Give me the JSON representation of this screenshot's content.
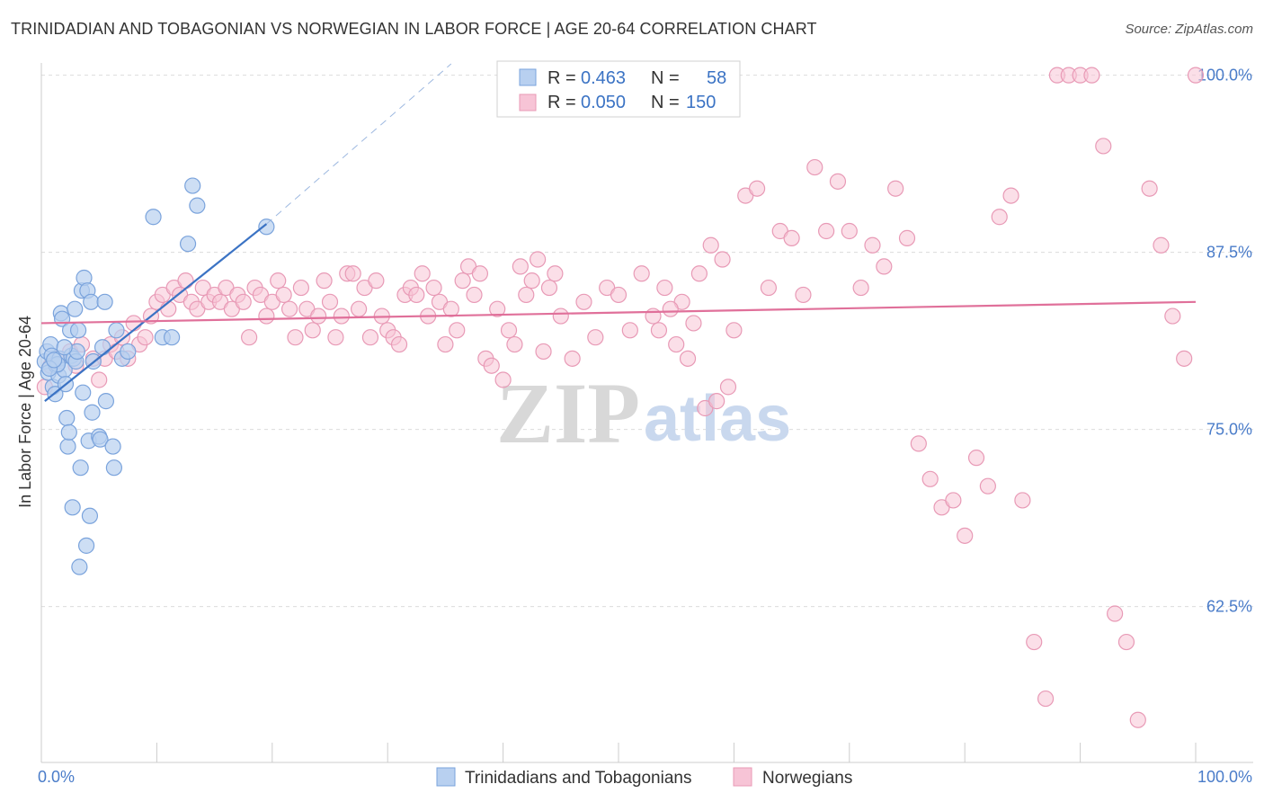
{
  "title": "TRINIDADIAN AND TOBAGONIAN VS NORWEGIAN IN LABOR FORCE | AGE 20-64 CORRELATION CHART",
  "source": "Source: ZipAtlas.com",
  "watermark": {
    "zip": "ZIP",
    "atlas": "atlas"
  },
  "legend": {
    "r_label": "R =",
    "n_label": "N =",
    "blue": {
      "r": "0.463",
      "n": "58"
    },
    "pink": {
      "r": "0.050",
      "n": "150"
    }
  },
  "colors": {
    "blue": "#3b73c4",
    "blue_fill": "#b8d0f0",
    "pink": "#e0709a",
    "pink_fill": "#f7c4d6"
  },
  "chart_data": {
    "type": "scatter",
    "xlabel": "",
    "ylabel": "In Labor Force | Age 20-64",
    "xlim": [
      0,
      100
    ],
    "ylim": [
      51.5,
      101.5
    ],
    "x_tick_labels": [
      "0.0%",
      "100.0%"
    ],
    "y_ticks": [
      {
        "value": 100.0,
        "label": "100.0%"
      },
      {
        "value": 87.5,
        "label": "87.5%"
      },
      {
        "value": 75.0,
        "label": "75.0%"
      },
      {
        "value": 62.5,
        "label": "62.5%"
      }
    ],
    "series": [
      {
        "name": "Trinidadians and Tobagonians",
        "trend": {
          "x0": 0.3,
          "y0": 77.0,
          "x1": 19.5,
          "y1": 89.5,
          "dash_x1": 35.5,
          "dash_y1": 100.8
        },
        "points": [
          [
            0.3,
            79.8
          ],
          [
            0.5,
            80.5
          ],
          [
            0.6,
            79.0
          ],
          [
            0.8,
            81.0
          ],
          [
            0.9,
            80.2
          ],
          [
            1.0,
            78.0
          ],
          [
            1.2,
            77.5
          ],
          [
            1.3,
            79.5
          ],
          [
            1.5,
            78.8
          ],
          [
            1.6,
            80.0
          ],
          [
            1.7,
            83.2
          ],
          [
            1.8,
            82.8
          ],
          [
            2.0,
            79.2
          ],
          [
            2.1,
            78.2
          ],
          [
            2.2,
            75.8
          ],
          [
            2.3,
            73.8
          ],
          [
            2.4,
            74.8
          ],
          [
            2.5,
            82.0
          ],
          [
            2.6,
            80.2
          ],
          [
            2.7,
            69.5
          ],
          [
            2.8,
            80.0
          ],
          [
            2.9,
            83.5
          ],
          [
            3.0,
            79.8
          ],
          [
            3.1,
            80.5
          ],
          [
            3.2,
            82.0
          ],
          [
            3.3,
            65.3
          ],
          [
            3.4,
            72.3
          ],
          [
            3.5,
            84.8
          ],
          [
            3.6,
            77.6
          ],
          [
            3.7,
            85.7
          ],
          [
            3.9,
            66.8
          ],
          [
            4.0,
            84.8
          ],
          [
            4.1,
            74.2
          ],
          [
            4.2,
            68.9
          ],
          [
            4.3,
            84.0
          ],
          [
            4.4,
            76.2
          ],
          [
            4.5,
            79.8
          ],
          [
            5.0,
            74.5
          ],
          [
            5.1,
            74.3
          ],
          [
            5.3,
            80.8
          ],
          [
            5.5,
            84.0
          ],
          [
            5.6,
            77.0
          ],
          [
            6.2,
            73.8
          ],
          [
            6.3,
            72.3
          ],
          [
            6.5,
            82.0
          ],
          [
            7.0,
            80.0
          ],
          [
            7.5,
            80.5
          ],
          [
            9.7,
            90.0
          ],
          [
            10.5,
            81.5
          ],
          [
            11.3,
            81.5
          ],
          [
            12.7,
            88.1
          ],
          [
            13.1,
            92.2
          ],
          [
            13.5,
            90.8
          ],
          [
            19.5,
            89.3
          ],
          [
            1.4,
            79.6
          ],
          [
            2.0,
            80.8
          ],
          [
            0.7,
            79.3
          ],
          [
            1.1,
            79.9
          ]
        ]
      },
      {
        "name": "Norwegians",
        "trend": {
          "x0": 0.0,
          "y0": 82.5,
          "x1": 100.0,
          "y1": 84.0
        },
        "points": [
          [
            0.3,
            78.0
          ],
          [
            0.8,
            79.5
          ],
          [
            1.5,
            80.0
          ],
          [
            2.5,
            80.5
          ],
          [
            3.0,
            79.5
          ],
          [
            3.5,
            81.0
          ],
          [
            4.5,
            80.0
          ],
          [
            5.0,
            78.5
          ],
          [
            5.5,
            80.0
          ],
          [
            6.0,
            81.0
          ],
          [
            6.5,
            80.5
          ],
          [
            7.0,
            81.5
          ],
          [
            7.5,
            80.0
          ],
          [
            8.0,
            82.5
          ],
          [
            8.5,
            81.0
          ],
          [
            9.0,
            81.5
          ],
          [
            9.5,
            83.0
          ],
          [
            10.0,
            84.0
          ],
          [
            10.5,
            84.5
          ],
          [
            11.0,
            83.5
          ],
          [
            11.5,
            85.0
          ],
          [
            12.0,
            84.5
          ],
          [
            12.5,
            85.5
          ],
          [
            13.0,
            84.0
          ],
          [
            13.5,
            83.5
          ],
          [
            14.0,
            85.0
          ],
          [
            14.5,
            84.0
          ],
          [
            15.0,
            84.5
          ],
          [
            15.5,
            84.0
          ],
          [
            16.0,
            85.0
          ],
          [
            16.5,
            83.5
          ],
          [
            17.0,
            84.5
          ],
          [
            17.5,
            84.0
          ],
          [
            18.0,
            81.5
          ],
          [
            18.5,
            85.0
          ],
          [
            19.0,
            84.5
          ],
          [
            19.5,
            83.0
          ],
          [
            20.0,
            84.0
          ],
          [
            20.5,
            85.5
          ],
          [
            21.0,
            84.5
          ],
          [
            21.5,
            83.5
          ],
          [
            22.0,
            81.5
          ],
          [
            22.5,
            85.0
          ],
          [
            23.0,
            83.5
          ],
          [
            23.5,
            82.0
          ],
          [
            24.0,
            83.0
          ],
          [
            24.5,
            85.5
          ],
          [
            25.0,
            84.0
          ],
          [
            25.5,
            81.5
          ],
          [
            26.0,
            83.0
          ],
          [
            26.5,
            86.0
          ],
          [
            27.0,
            86.0
          ],
          [
            27.5,
            83.5
          ],
          [
            28.0,
            85.0
          ],
          [
            28.5,
            81.5
          ],
          [
            29.0,
            85.5
          ],
          [
            29.5,
            83.0
          ],
          [
            30.0,
            82.0
          ],
          [
            30.5,
            81.5
          ],
          [
            31.0,
            81.0
          ],
          [
            31.5,
            84.5
          ],
          [
            32.0,
            85.0
          ],
          [
            32.5,
            84.5
          ],
          [
            33.0,
            86.0
          ],
          [
            33.5,
            83.0
          ],
          [
            34.0,
            85.0
          ],
          [
            34.5,
            84.0
          ],
          [
            35.0,
            81.0
          ],
          [
            35.5,
            83.5
          ],
          [
            36.0,
            82.0
          ],
          [
            36.5,
            85.5
          ],
          [
            37.0,
            86.5
          ],
          [
            37.5,
            84.5
          ],
          [
            38.0,
            86.0
          ],
          [
            38.5,
            80.0
          ],
          [
            39.0,
            79.5
          ],
          [
            39.5,
            83.5
          ],
          [
            40.0,
            78.5
          ],
          [
            40.5,
            82.0
          ],
          [
            41.0,
            81.0
          ],
          [
            41.5,
            86.5
          ],
          [
            42.0,
            84.5
          ],
          [
            42.5,
            85.5
          ],
          [
            43.0,
            87.0
          ],
          [
            43.5,
            80.5
          ],
          [
            44.0,
            85.0
          ],
          [
            44.5,
            86.0
          ],
          [
            45.0,
            83.0
          ],
          [
            46.0,
            80.0
          ],
          [
            47.0,
            84.0
          ],
          [
            48.0,
            81.5
          ],
          [
            49.0,
            85.0
          ],
          [
            50.0,
            84.5
          ],
          [
            51.0,
            82.0
          ],
          [
            52.0,
            86.0
          ],
          [
            53.0,
            83.0
          ],
          [
            54.0,
            85.0
          ],
          [
            55.0,
            81.0
          ],
          [
            56.0,
            80.0
          ],
          [
            57.0,
            86.0
          ],
          [
            58.0,
            88.0
          ],
          [
            59.0,
            87.0
          ],
          [
            60.0,
            82.0
          ],
          [
            61.0,
            91.5
          ],
          [
            62.0,
            92.0
          ],
          [
            63.0,
            85.0
          ],
          [
            64.0,
            89.0
          ],
          [
            65.0,
            88.5
          ],
          [
            66.0,
            84.5
          ],
          [
            67.0,
            93.5
          ],
          [
            68.0,
            89.0
          ],
          [
            69.0,
            92.5
          ],
          [
            70.0,
            89.0
          ],
          [
            71.0,
            85.0
          ],
          [
            72.0,
            88.0
          ],
          [
            73.0,
            86.5
          ],
          [
            74.0,
            92.0
          ],
          [
            75.0,
            88.5
          ],
          [
            76.0,
            74.0
          ],
          [
            77.0,
            71.5
          ],
          [
            78.0,
            69.5
          ],
          [
            79.0,
            70.0
          ],
          [
            80.0,
            67.5
          ],
          [
            81.0,
            73.0
          ],
          [
            82.0,
            71.0
          ],
          [
            83.0,
            90.0
          ],
          [
            84.0,
            91.5
          ],
          [
            85.0,
            70.0
          ],
          [
            86.0,
            60.0
          ],
          [
            87.0,
            56.0
          ],
          [
            88.0,
            100.0
          ],
          [
            89.0,
            100.0
          ],
          [
            90.0,
            100.0
          ],
          [
            91.0,
            100.0
          ],
          [
            92.0,
            95.0
          ],
          [
            93.0,
            62.0
          ],
          [
            94.0,
            60.0
          ],
          [
            95.0,
            54.5
          ],
          [
            96.0,
            92.0
          ],
          [
            97.0,
            88.0
          ],
          [
            98.0,
            83.0
          ],
          [
            99.0,
            80.0
          ],
          [
            100.0,
            100.0
          ],
          [
            57.5,
            76.5
          ],
          [
            58.5,
            77.0
          ],
          [
            59.5,
            78.0
          ],
          [
            56.5,
            82.5
          ],
          [
            55.5,
            84.0
          ],
          [
            54.5,
            83.5
          ],
          [
            53.5,
            82.0
          ]
        ]
      }
    ]
  },
  "bottom_legend": {
    "blue_label": "Trinidadians and Tobagonians",
    "pink_label": "Norwegians"
  }
}
